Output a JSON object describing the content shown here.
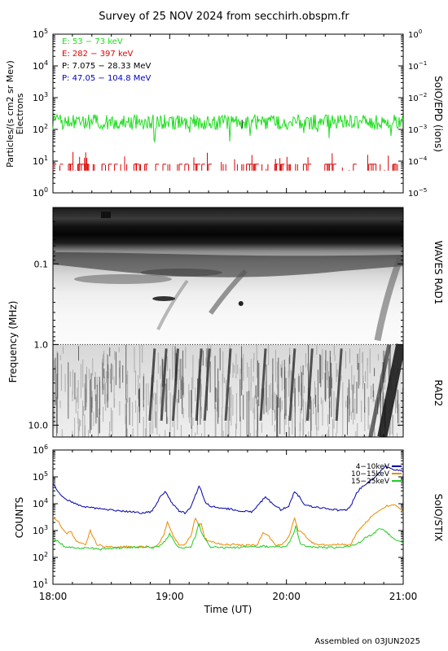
{
  "title": "Survey of 25 NOV 2024 from secchirh.obspm.fr",
  "footer": "Assembled on 03JUN2025",
  "chart_data": [
    {
      "type": "line",
      "panel": "SoIO/EPD",
      "right_label": "SoIO/EPD (ions)",
      "ylabel_left": "Particles/(s cm2 sr Mev)",
      "ylabel_left_sub": "Electrons",
      "yscale": "log",
      "ylim_left": [
        1,
        100000
      ],
      "ylim_right": [
        1e-05,
        1
      ],
      "left_ticks": [
        {
          "base": "10",
          "exp": "0"
        },
        {
          "base": "10",
          "exp": "1"
        },
        {
          "base": "10",
          "exp": "2"
        },
        {
          "base": "10",
          "exp": "3"
        },
        {
          "base": "10",
          "exp": "4"
        },
        {
          "base": "10",
          "exp": "5"
        }
      ],
      "right_ticks": [
        {
          "base": "10",
          "exp": "−5"
        },
        {
          "base": "10",
          "exp": "−4"
        },
        {
          "base": "10",
          "exp": "−3"
        },
        {
          "base": "10",
          "exp": "−2"
        },
        {
          "base": "10",
          "exp": "−1"
        },
        {
          "base": "10",
          "exp": "0"
        }
      ],
      "legend": [
        {
          "label": "E: 53 − 73 keV",
          "color": "#22dd22"
        },
        {
          "label": "E: 282 − 397 keV",
          "color": "#dd0000"
        },
        {
          "label": "P: 7.075 − 28.33 MeV",
          "color": "#000000"
        },
        {
          "label": "P: 47.05 − 104.8 MeV",
          "color": "#0000cc"
        }
      ],
      "series": [
        {
          "name": "E: 53 − 73 keV",
          "color": "#22dd22",
          "level": 170,
          "scatter_decades": 0.3
        },
        {
          "name": "E: 282 − 397 keV",
          "color": "#dd0000",
          "baseline": 5,
          "spike_max": 20
        }
      ]
    },
    {
      "type": "heatmap",
      "panel": "WAVES",
      "ylabel": "Frequency (MHz)",
      "yscale": "log",
      "ylim": [
        0.02,
        14
      ],
      "yticks": [
        "0.1",
        "1.0",
        "10.0"
      ],
      "bands": [
        {
          "label": "WAVES RAD1",
          "range_mhz": [
            0.02,
            1.0
          ]
        },
        {
          "label": "RAD2",
          "range_mhz": [
            1.0,
            14
          ]
        }
      ],
      "colormap": "grayscale-inverted"
    },
    {
      "type": "line",
      "panel": "SoIO/STIX",
      "right_label": "SoIO/STIX",
      "ylabel": "COUNTS",
      "yscale": "log",
      "ylim": [
        10,
        1000000
      ],
      "yticks": [
        {
          "base": "10",
          "exp": "1"
        },
        {
          "base": "10",
          "exp": "2"
        },
        {
          "base": "10",
          "exp": "3"
        },
        {
          "base": "10",
          "exp": "4"
        },
        {
          "base": "10",
          "exp": "5"
        },
        {
          "base": "10",
          "exp": "6"
        }
      ],
      "xlabel": "Time (UT)",
      "xticks": [
        "18:00",
        "19:00",
        "20:00",
        "21:00"
      ],
      "xlim_hours": [
        18,
        21
      ],
      "legend_placement": "top-right",
      "series": [
        {
          "name": "4−10keV",
          "color": "#0000aa",
          "x": [
            18.0,
            18.02,
            18.05,
            18.08,
            18.12,
            18.17,
            18.25,
            18.35,
            18.45,
            18.55,
            18.65,
            18.72,
            18.78,
            18.84,
            18.88,
            18.92,
            18.96,
            18.99,
            19.03,
            19.08,
            19.13,
            19.18,
            19.22,
            19.25,
            19.27,
            19.3,
            19.35,
            19.42,
            19.5,
            19.6,
            19.7,
            19.76,
            19.82,
            19.88,
            19.95,
            20.02,
            20.07,
            20.11,
            20.15,
            20.2,
            20.28,
            20.35,
            20.42,
            20.48,
            20.52,
            20.55,
            20.6,
            20.65,
            20.7,
            20.75,
            20.8,
            20.85,
            20.9,
            20.95,
            21.0
          ],
          "y": [
            60000,
            40000,
            25000,
            20000,
            14000,
            11000,
            8000,
            7000,
            6000,
            5500,
            5000,
            4800,
            4500,
            5000,
            8000,
            18000,
            28000,
            18000,
            9000,
            5500,
            4500,
            7000,
            20000,
            45000,
            30000,
            12000,
            8000,
            7000,
            6500,
            5500,
            5000,
            9000,
            18000,
            10000,
            6000,
            8000,
            30000,
            18000,
            9000,
            8000,
            7000,
            6500,
            6000,
            5500,
            6000,
            8000,
            25000,
            45000,
            60000,
            90000,
            150000,
            250000,
            200000,
            180000,
            150000
          ]
        },
        {
          "name": "10−15keV",
          "color": "#ee8800",
          "x": [
            18.0,
            18.02,
            18.05,
            18.08,
            18.12,
            18.15,
            18.2,
            18.28,
            18.32,
            18.35,
            18.38,
            18.45,
            18.55,
            18.65,
            18.75,
            18.85,
            18.9,
            18.95,
            18.98,
            19.02,
            19.08,
            19.13,
            19.18,
            19.22,
            19.25,
            19.27,
            19.3,
            19.35,
            19.45,
            19.55,
            19.65,
            19.75,
            19.8,
            19.85,
            19.9,
            19.95,
            20.02,
            20.07,
            20.1,
            20.14,
            20.18,
            20.22,
            20.28,
            20.35,
            20.45,
            20.55,
            20.6,
            20.65,
            20.7,
            20.75,
            20.8,
            20.85,
            20.9,
            20.95,
            21.0
          ],
          "y": [
            3000,
            2500,
            2000,
            1200,
            800,
            1000,
            400,
            300,
            1000,
            500,
            300,
            250,
            250,
            250,
            250,
            250,
            300,
            700,
            2000,
            800,
            300,
            300,
            600,
            3000,
            1500,
            2000,
            500,
            400,
            300,
            300,
            280,
            300,
            800,
            600,
            300,
            280,
            600,
            3000,
            1000,
            800,
            500,
            350,
            300,
            280,
            300,
            300,
            800,
            1500,
            2500,
            4000,
            6000,
            8000,
            9000,
            8000,
            5000
          ]
        },
        {
          "name": "15−25keV",
          "color": "#22cc22",
          "x": [
            18.0,
            18.05,
            18.1,
            18.2,
            18.3,
            18.4,
            18.5,
            18.6,
            18.7,
            18.8,
            18.9,
            18.96,
            19.0,
            19.05,
            19.1,
            19.18,
            19.22,
            19.25,
            19.28,
            19.35,
            19.45,
            19.55,
            19.65,
            19.75,
            19.8,
            19.9,
            20.0,
            20.06,
            20.08,
            20.12,
            20.2,
            20.3,
            20.4,
            20.5,
            20.6,
            20.65,
            20.7,
            20.75,
            20.8,
            20.85,
            20.9,
            20.95,
            21.0
          ],
          "y": [
            450,
            400,
            250,
            220,
            230,
            200,
            220,
            230,
            240,
            230,
            250,
            400,
            800,
            300,
            220,
            250,
            600,
            1800,
            700,
            250,
            230,
            230,
            250,
            240,
            260,
            250,
            250,
            700,
            1500,
            300,
            250,
            240,
            230,
            250,
            300,
            450,
            600,
            800,
            1200,
            900,
            600,
            400,
            350
          ]
        }
      ]
    }
  ]
}
